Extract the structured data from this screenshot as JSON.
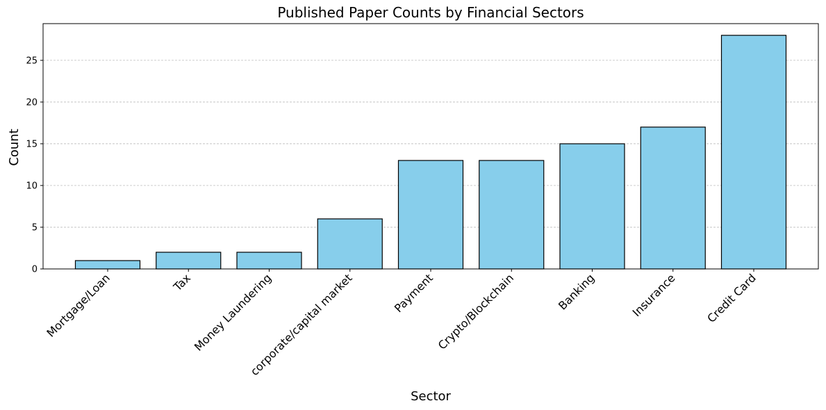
{
  "chart_data": {
    "type": "bar",
    "title": "Published Paper Counts by Financial Sectors",
    "xlabel": "Sector",
    "ylabel": "Count",
    "categories": [
      "Mortgage/Loan",
      "Tax",
      "Money Laundering",
      "corporate/capital market",
      "Payment",
      "Crypto/Blockchain",
      "Banking",
      "Insurance",
      "Credit Card"
    ],
    "values": [
      1,
      2,
      2,
      6,
      13,
      13,
      15,
      17,
      28
    ],
    "ylim": [
      0,
      29.4
    ],
    "yticks": [
      "0",
      "5",
      "10",
      "15",
      "20",
      "25"
    ],
    "grid": "y-dashed",
    "bar_color": "#87CEEB",
    "edge_color": "#000000",
    "grid_color": "#b0b0b0"
  }
}
